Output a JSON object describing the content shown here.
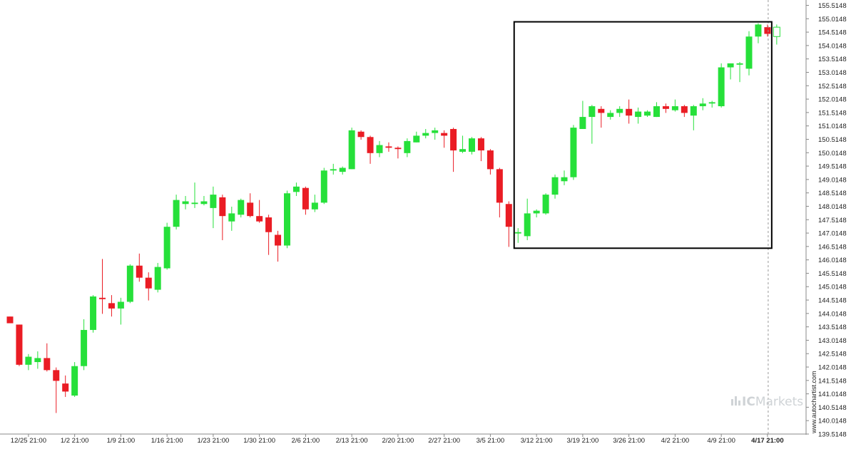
{
  "chart_data": {
    "type": "candlestick",
    "y_ticks": [
      "155.5148",
      "155.0148",
      "154.5148",
      "154.0148",
      "153.5148",
      "153.0148",
      "152.5148",
      "152.0148",
      "151.5148",
      "151.0148",
      "150.5148",
      "150.0148",
      "149.5148",
      "149.0148",
      "148.5148",
      "148.0148",
      "147.5148",
      "147.0148",
      "146.5148",
      "146.0148",
      "145.5148",
      "145.0148",
      "144.5148",
      "144.0148",
      "143.5148",
      "143.0148",
      "142.5148",
      "142.0148",
      "141.5148",
      "141.0148",
      "140.5148",
      "140.0148",
      "139.5148"
    ],
    "ylim": [
      139.5148,
      155.5148
    ],
    "x_labels": [
      {
        "label": "12/25 21:00",
        "index": 2
      },
      {
        "label": "1/2 21:00",
        "index": 7
      },
      {
        "label": "1/9 21:00",
        "index": 12
      },
      {
        "label": "1/16 21:00",
        "index": 17
      },
      {
        "label": "1/23 21:00",
        "index": 22
      },
      {
        "label": "1/30 21:00",
        "index": 27
      },
      {
        "label": "2/6 21:00",
        "index": 32
      },
      {
        "label": "2/13 21:00",
        "index": 37
      },
      {
        "label": "2/20 21:00",
        "index": 42
      },
      {
        "label": "2/27 21:00",
        "index": 47
      },
      {
        "label": "3/5 21:00",
        "index": 52
      },
      {
        "label": "3/12 21:00",
        "index": 57
      },
      {
        "label": "3/19 21:00",
        "index": 62
      },
      {
        "label": "3/26 21:00",
        "index": 67
      },
      {
        "label": "4/2 21:00",
        "index": 72
      },
      {
        "label": "4/9 21:00",
        "index": 77
      },
      {
        "label": "4/17 21:00",
        "index": 82,
        "bold": true
      }
    ],
    "candles": [
      {
        "o": 143.9,
        "h": 143.9,
        "l": 143.65,
        "c": 143.65
      },
      {
        "o": 143.6,
        "h": 143.6,
        "l": 142.05,
        "c": 142.1
      },
      {
        "o": 142.1,
        "h": 142.5,
        "l": 141.9,
        "c": 142.4
      },
      {
        "o": 142.2,
        "h": 142.6,
        "l": 141.95,
        "c": 142.35
      },
      {
        "o": 142.35,
        "h": 142.9,
        "l": 141.85,
        "c": 141.9
      },
      {
        "o": 141.9,
        "h": 142.0,
        "l": 140.3,
        "c": 141.5
      },
      {
        "o": 141.4,
        "h": 141.7,
        "l": 140.9,
        "c": 141.1
      },
      {
        "o": 140.95,
        "h": 142.2,
        "l": 140.9,
        "c": 142.05
      },
      {
        "o": 142.05,
        "h": 143.8,
        "l": 141.9,
        "c": 143.4
      },
      {
        "o": 143.4,
        "h": 144.7,
        "l": 143.3,
        "c": 144.65
      },
      {
        "o": 144.6,
        "h": 146.05,
        "l": 144.0,
        "c": 144.55
      },
      {
        "o": 144.4,
        "h": 144.7,
        "l": 143.9,
        "c": 144.2
      },
      {
        "o": 144.2,
        "h": 144.6,
        "l": 143.6,
        "c": 144.45
      },
      {
        "o": 144.45,
        "h": 145.85,
        "l": 144.4,
        "c": 145.8
      },
      {
        "o": 145.8,
        "h": 146.25,
        "l": 145.2,
        "c": 145.35
      },
      {
        "o": 145.35,
        "h": 145.55,
        "l": 144.5,
        "c": 144.95
      },
      {
        "o": 144.9,
        "h": 145.9,
        "l": 144.8,
        "c": 145.75
      },
      {
        "o": 145.7,
        "h": 147.4,
        "l": 145.65,
        "c": 147.25
      },
      {
        "o": 147.25,
        "h": 148.45,
        "l": 147.15,
        "c": 148.25
      },
      {
        "o": 148.1,
        "h": 148.4,
        "l": 147.9,
        "c": 148.2
      },
      {
        "o": 148.1,
        "h": 148.9,
        "l": 147.95,
        "c": 148.15
      },
      {
        "o": 148.1,
        "h": 148.4,
        "l": 148.05,
        "c": 148.2
      },
      {
        "o": 147.95,
        "h": 148.75,
        "l": 147.2,
        "c": 148.45
      },
      {
        "o": 148.35,
        "h": 148.45,
        "l": 146.75,
        "c": 147.65
      },
      {
        "o": 147.45,
        "h": 148.0,
        "l": 147.1,
        "c": 147.75
      },
      {
        "o": 147.7,
        "h": 148.3,
        "l": 147.6,
        "c": 148.25
      },
      {
        "o": 148.15,
        "h": 148.5,
        "l": 147.6,
        "c": 147.65
      },
      {
        "o": 147.65,
        "h": 148.25,
        "l": 147.4,
        "c": 147.45
      },
      {
        "o": 147.6,
        "h": 147.7,
        "l": 146.2,
        "c": 147.05
      },
      {
        "o": 146.95,
        "h": 147.1,
        "l": 145.95,
        "c": 146.55
      },
      {
        "o": 146.55,
        "h": 148.6,
        "l": 146.45,
        "c": 148.5
      },
      {
        "o": 148.55,
        "h": 148.9,
        "l": 148.4,
        "c": 148.75
      },
      {
        "o": 148.7,
        "h": 148.75,
        "l": 147.7,
        "c": 147.9
      },
      {
        "o": 147.9,
        "h": 148.45,
        "l": 147.8,
        "c": 148.15
      },
      {
        "o": 148.15,
        "h": 149.45,
        "l": 148.1,
        "c": 149.35
      },
      {
        "o": 149.35,
        "h": 149.6,
        "l": 149.2,
        "c": 149.4
      },
      {
        "o": 149.3,
        "h": 149.5,
        "l": 149.2,
        "c": 149.45
      },
      {
        "o": 149.4,
        "h": 150.95,
        "l": 149.4,
        "c": 150.85
      },
      {
        "o": 150.8,
        "h": 150.85,
        "l": 150.5,
        "c": 150.6
      },
      {
        "o": 150.6,
        "h": 150.65,
        "l": 149.6,
        "c": 150.0
      },
      {
        "o": 150.0,
        "h": 150.45,
        "l": 149.85,
        "c": 150.3
      },
      {
        "o": 150.25,
        "h": 150.4,
        "l": 150.05,
        "c": 150.2
      },
      {
        "o": 150.2,
        "h": 150.25,
        "l": 149.8,
        "c": 150.15
      },
      {
        "o": 150.0,
        "h": 150.55,
        "l": 149.85,
        "c": 150.45
      },
      {
        "o": 150.4,
        "h": 150.8,
        "l": 150.4,
        "c": 150.65
      },
      {
        "o": 150.65,
        "h": 150.9,
        "l": 150.55,
        "c": 150.75
      },
      {
        "o": 150.75,
        "h": 150.95,
        "l": 150.5,
        "c": 150.85
      },
      {
        "o": 150.75,
        "h": 150.85,
        "l": 150.2,
        "c": 150.65
      },
      {
        "o": 150.9,
        "h": 150.95,
        "l": 149.3,
        "c": 150.1
      },
      {
        "o": 150.05,
        "h": 150.65,
        "l": 150.0,
        "c": 150.15
      },
      {
        "o": 150.05,
        "h": 150.6,
        "l": 149.95,
        "c": 150.55
      },
      {
        "o": 150.55,
        "h": 150.6,
        "l": 149.7,
        "c": 150.1
      },
      {
        "o": 150.1,
        "h": 150.15,
        "l": 149.2,
        "c": 149.4
      },
      {
        "o": 149.4,
        "h": 149.45,
        "l": 147.6,
        "c": 148.15
      },
      {
        "o": 148.1,
        "h": 148.2,
        "l": 146.5,
        "c": 147.25
      },
      {
        "o": 147.0,
        "h": 147.2,
        "l": 146.65,
        "c": 147.05
      },
      {
        "o": 146.9,
        "h": 148.3,
        "l": 146.75,
        "c": 147.75
      },
      {
        "o": 147.75,
        "h": 147.9,
        "l": 147.6,
        "c": 147.85
      },
      {
        "o": 147.75,
        "h": 148.5,
        "l": 147.7,
        "c": 148.45
      },
      {
        "o": 148.45,
        "h": 149.2,
        "l": 148.3,
        "c": 149.1
      },
      {
        "o": 148.95,
        "h": 149.35,
        "l": 148.8,
        "c": 149.1
      },
      {
        "o": 149.1,
        "h": 151.05,
        "l": 149.0,
        "c": 150.95
      },
      {
        "o": 150.9,
        "h": 151.95,
        "l": 150.9,
        "c": 151.35
      },
      {
        "o": 151.35,
        "h": 151.8,
        "l": 150.35,
        "c": 151.75
      },
      {
        "o": 151.65,
        "h": 151.75,
        "l": 150.95,
        "c": 151.5
      },
      {
        "o": 151.35,
        "h": 151.6,
        "l": 151.25,
        "c": 151.5
      },
      {
        "o": 151.5,
        "h": 151.75,
        "l": 151.35,
        "c": 151.65
      },
      {
        "o": 151.65,
        "h": 152.0,
        "l": 151.1,
        "c": 151.4
      },
      {
        "o": 151.35,
        "h": 151.7,
        "l": 151.1,
        "c": 151.55
      },
      {
        "o": 151.4,
        "h": 151.6,
        "l": 151.35,
        "c": 151.55
      },
      {
        "o": 151.35,
        "h": 151.9,
        "l": 151.35,
        "c": 151.75
      },
      {
        "o": 151.75,
        "h": 151.85,
        "l": 151.5,
        "c": 151.65
      },
      {
        "o": 151.6,
        "h": 152.0,
        "l": 151.55,
        "c": 151.75
      },
      {
        "o": 151.75,
        "h": 151.8,
        "l": 151.35,
        "c": 151.5
      },
      {
        "o": 151.4,
        "h": 151.8,
        "l": 150.85,
        "c": 151.75
      },
      {
        "o": 151.75,
        "h": 152.05,
        "l": 151.6,
        "c": 151.85
      },
      {
        "o": 151.85,
        "h": 151.95,
        "l": 151.7,
        "c": 151.9
      },
      {
        "o": 151.75,
        "h": 153.35,
        "l": 151.7,
        "c": 153.2
      },
      {
        "o": 153.2,
        "h": 153.3,
        "l": 152.75,
        "c": 153.35
      },
      {
        "o": 153.3,
        "h": 153.4,
        "l": 152.65,
        "c": 153.35
      },
      {
        "o": 153.15,
        "h": 154.55,
        "l": 152.9,
        "c": 154.35
      },
      {
        "o": 154.35,
        "h": 154.85,
        "l": 154.1,
        "c": 154.8
      },
      {
        "o": 154.7,
        "h": 154.8,
        "l": 154.35,
        "c": 154.45
      }
    ],
    "projected_candle": {
      "o": 154.35,
      "h": 154.8,
      "l": 154.05,
      "c": 154.7
    },
    "highlight_box": {
      "start_index": 55,
      "end_index": 83,
      "top": 154.9,
      "bottom": 146.45
    },
    "colors": {
      "up": "#26e03a",
      "down": "#ea1c24",
      "box": "#000000",
      "axis": "#888888",
      "guide": "#999999"
    }
  },
  "watermark": {
    "url": "www.autochartist.com",
    "logo_ic": "IC",
    "logo_markets": "Markets"
  }
}
